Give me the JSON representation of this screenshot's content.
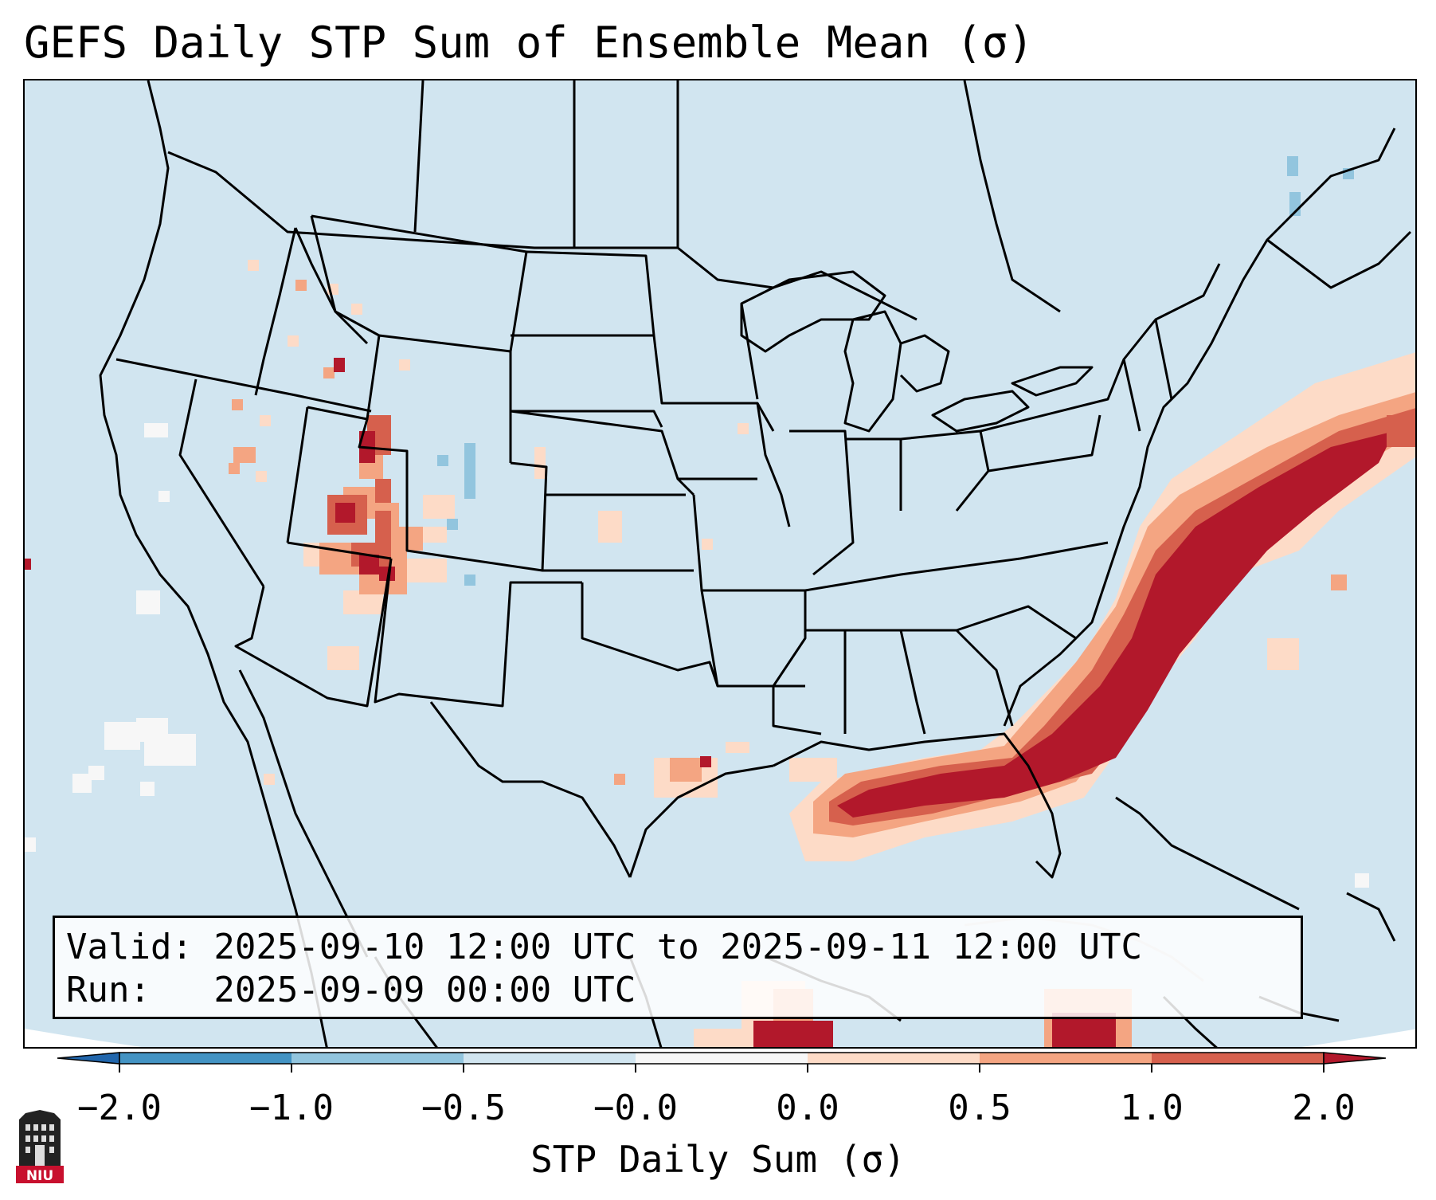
{
  "title": "GEFS Daily STP Sum of Ensemble Mean (σ)",
  "info": {
    "valid_line": "Valid: 2025-09-10 12:00 UTC to 2025-09-11 12:00 UTC",
    "run_line": "Run:   2025-09-09 00:00 UTC"
  },
  "colorbar": {
    "label": "STP Daily Sum (σ)",
    "ticks": [
      "−2.0",
      "−1.0",
      "−0.5",
      "−0.0",
      "0.0",
      "0.5",
      "1.0",
      "2.0"
    ],
    "colors": {
      "under": "#2166ac",
      "bins": [
        "#4393c3",
        "#92c5de",
        "#d1e5f0",
        "#f7f7f7",
        "#fddbc7",
        "#f4a582",
        "#d6604d"
      ],
      "over": "#b2182b"
    }
  },
  "map": {
    "ocean_color": "#d1e5f0",
    "land_color": "#d1e5f0",
    "border_color": "#000000",
    "regions": [
      "Intermountain West (Utah / Arizona)",
      "Texas Gulf Coast",
      "Gulf of Mexico",
      "Southeast Atlantic Coast"
    ]
  },
  "logo": {
    "text": "NIU",
    "color": "#c8102e"
  }
}
